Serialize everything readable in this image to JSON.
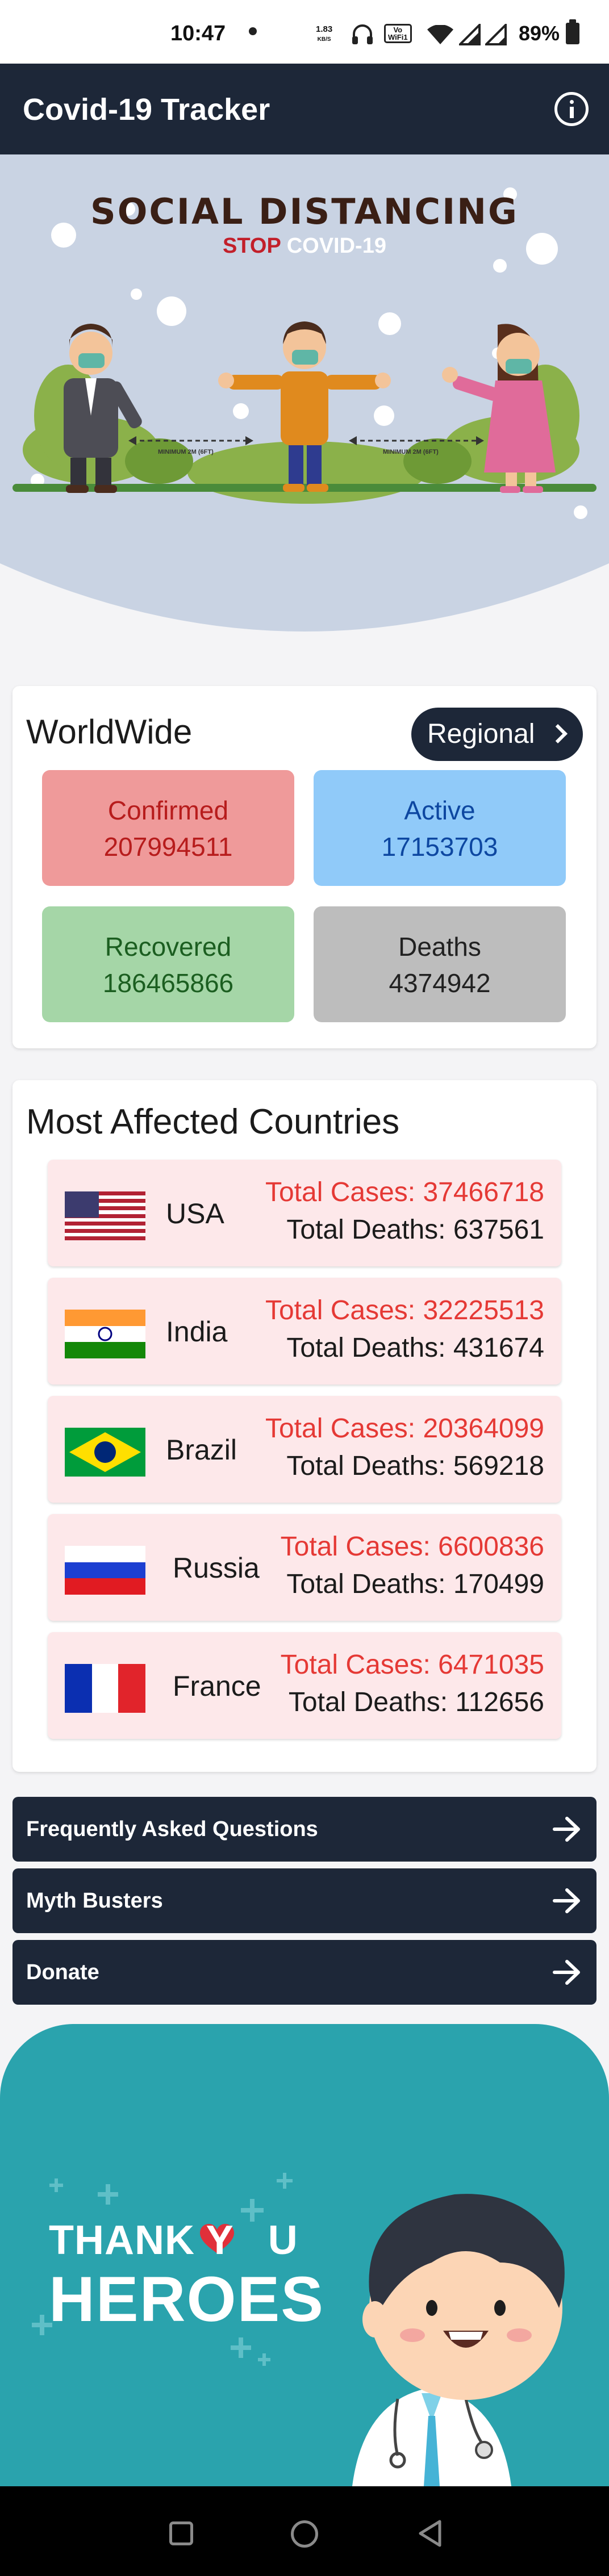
{
  "status_bar": {
    "time": "10:47",
    "net_speed_value": "1.83",
    "net_speed_unit": "KB/S",
    "volte_top": "Vo",
    "volte_bottom": "WiFi1",
    "battery": "89%",
    "icons": [
      "dot-notification-icon",
      "headphones-icon",
      "volte-wifi-icon",
      "wifi-icon",
      "signal-icon",
      "signal-icon",
      "battery-icon"
    ]
  },
  "app_bar": {
    "title": "Covid-19 Tracker",
    "info_icon": "info-icon"
  },
  "hero": {
    "headline": "SOCIAL DISTANCING",
    "stop": "STOP",
    "covid": "COVID-19",
    "distance_label": "MINIMUM 2M (6FT)"
  },
  "worldwide": {
    "title": "WorldWide",
    "regional_button": "Regional",
    "confirmed": {
      "label": "Confirmed",
      "value": "207994511"
    },
    "active": {
      "label": "Active",
      "value": "17153703"
    },
    "recovered": {
      "label": "Recovered",
      "value": "186465866"
    },
    "deaths": {
      "label": "Deaths",
      "value": "4374942"
    }
  },
  "most_affected": {
    "title": "Most Affected Countries",
    "countries": [
      {
        "name": "USA",
        "cases": "Total Cases: 37466718",
        "deaths": "Total Deaths: 637561",
        "flag": "usa-flag-icon"
      },
      {
        "name": "India",
        "cases": "Total Cases: 32225513",
        "deaths": "Total Deaths: 431674",
        "flag": "india-flag-icon"
      },
      {
        "name": "Brazil",
        "cases": "Total Cases: 20364099",
        "deaths": "Total Deaths: 569218",
        "flag": "brazil-flag-icon"
      },
      {
        "name": "Russia",
        "cases": "Total Cases: 6600836",
        "deaths": "Total Deaths: 170499",
        "flag": "russia-flag-icon"
      },
      {
        "name": "France",
        "cases": "Total Cases: 6471035",
        "deaths": "Total Deaths: 112656",
        "flag": "france-flag-icon"
      }
    ]
  },
  "nav": {
    "faq": "Frequently Asked Questions",
    "myth": "Myth Busters",
    "donate": "Donate",
    "arrow_icon": "arrow-right-icon"
  },
  "heroes_banner": {
    "thank_a": "THANK Y",
    "thank_b": "U",
    "heroes": "HEROES"
  },
  "colors": {
    "app_bar": "#1d2738",
    "confirmed_bg": "#ef9a9a",
    "active_bg": "#90caf9",
    "recovered_bg": "#a5d6a7",
    "deaths_bg": "#bdbdbd",
    "cases_text": "#e53935",
    "banner_teal": "#2aa3ad"
  }
}
